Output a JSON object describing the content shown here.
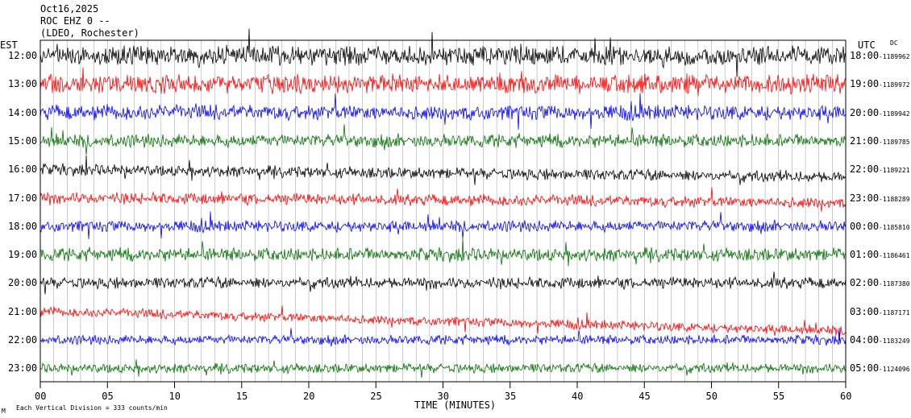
{
  "header": {
    "date": "Oct16,2025",
    "station": "ROC EHZ 0 --",
    "location": "(LDEO, Rochester)"
  },
  "footer": {
    "division_note": "Each Vertical Division = 333 counts/min",
    "corner_mark": "M"
  },
  "chart_data": {
    "type": "line",
    "title": "",
    "xlabel": "TIME (MINUTES)",
    "left_axis_label": "EST",
    "right_axis_label": "UTC",
    "dc_label": "DC",
    "x_range": [
      0,
      60
    ],
    "x_ticks": [
      "00",
      "05",
      "10",
      "15",
      "20",
      "25",
      "30",
      "35",
      "40",
      "45",
      "50",
      "55",
      "60"
    ],
    "colors": [
      "#000000",
      "#ff0000",
      "#0000ff",
      "#007000"
    ],
    "rows": [
      {
        "est": "12:00",
        "utc": "18:00",
        "dc": "-1189962",
        "amp": 1.0,
        "drift": 0
      },
      {
        "est": "13:00",
        "utc": "19:00",
        "dc": "-1189972",
        "amp": 1.0,
        "drift": 0
      },
      {
        "est": "14:00",
        "utc": "20:00",
        "dc": "-1189942",
        "amp": 0.8,
        "drift": 0
      },
      {
        "est": "15:00",
        "utc": "21:00",
        "dc": "-1189785",
        "amp": 0.7,
        "drift": 0
      },
      {
        "est": "16:00",
        "utc": "22:00",
        "dc": "-1189221",
        "amp": 0.6,
        "drift": 0.5
      },
      {
        "est": "17:00",
        "utc": "23:00",
        "dc": "-1188289",
        "amp": 0.6,
        "drift": 0.3
      },
      {
        "est": "18:00",
        "utc": "00:00",
        "dc": "-1185810",
        "amp": 0.6,
        "drift": 0
      },
      {
        "est": "19:00",
        "utc": "01:00",
        "dc": "-1186461",
        "amp": 0.7,
        "drift": 0
      },
      {
        "est": "20:00",
        "utc": "02:00",
        "dc": "-1187380",
        "amp": 0.6,
        "drift": 0
      },
      {
        "est": "21:00",
        "utc": "03:00",
        "dc": "-1187171",
        "amp": 0.5,
        "drift": 1.2
      },
      {
        "est": "22:00",
        "utc": "04:00",
        "dc": "-1183249",
        "amp": 0.5,
        "drift": 0
      },
      {
        "est": "23:00",
        "utc": "05:00",
        "dc": "-1124096",
        "amp": 0.5,
        "drift": 0
      }
    ]
  }
}
